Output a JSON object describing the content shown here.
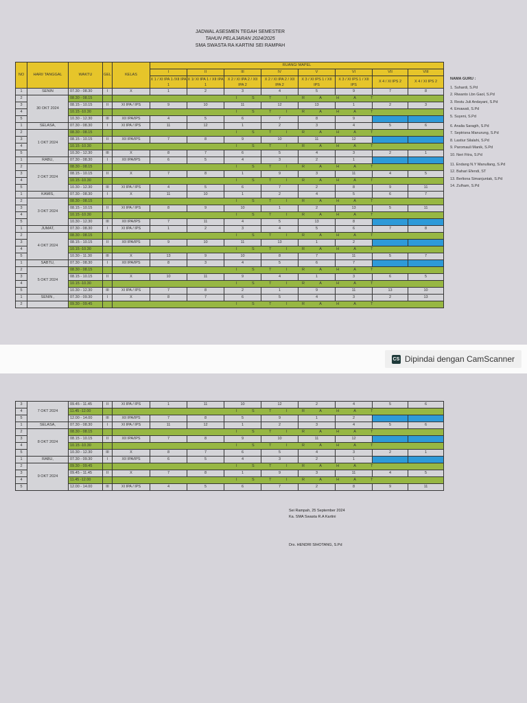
{
  "document": {
    "title_line1": "JADWAL ASESMEN TEGAH SEMESTER",
    "title_line2": "TAHUN PELAJARAN 2024/2025",
    "title_line3": "SMA SWASTA RA KARTINI SEI RAMPAH"
  },
  "table": {
    "headers": {
      "no": "NO",
      "hari": "HARI/ TANGGAL",
      "waktu": "WAKTU",
      "gel": "GEL",
      "kelas": "KELAS",
      "ruang": "RUANG/ MAPEL",
      "rooms": [
        {
          "num": "I",
          "cls": "X 1 / XI IPA 1 /XII IPA 1"
        },
        {
          "num": "II",
          "cls": "X 1/ XI IPA 1 / XII IPA 1"
        },
        {
          "num": "III",
          "cls": "X 2 / XI IPA 2 / XII IPA 2"
        },
        {
          "num": "IV",
          "cls": "X 2 / XI IPA 2 / XII IPA 2"
        },
        {
          "num": "V",
          "cls": "X 3 / XI IPS 1 / XII IPS"
        },
        {
          "num": "VI",
          "cls": "X 3 / XI IPS 1 / XII IPS"
        },
        {
          "num": "VII",
          "cls": "X 4 / XI IPS 2"
        },
        {
          "num": "VIII",
          "cls": "X 4 / XI IPS 2"
        }
      ]
    },
    "break_label": "I S T I R A H A T",
    "days_page1": [
      {
        "day": "SENIN",
        "date": "30 OKT 2024",
        "rows": [
          {
            "no": "1",
            "waktu": "07.30 - 08.30",
            "gel": "I",
            "kelas": "X",
            "vals": [
              "1",
              "2",
              "3",
              "4",
              "5",
              "9",
              "7",
              "8"
            ]
          },
          {
            "no": "2",
            "waktu": "08.30 - 08.15",
            "break": true
          },
          {
            "no": "3",
            "waktu": "08.15 - 10.15",
            "gel": "II",
            "kelas": "XI IPA / IPS",
            "vals": [
              "9",
              "10",
              "11",
              "12",
              "13",
              "1",
              "2",
              "3"
            ]
          },
          {
            "no": "4",
            "waktu": "10.15 -10.30",
            "break": true
          },
          {
            "no": "5",
            "waktu": "10.30 - 12.30",
            "gel": "III",
            "kelas": "XII IPA/IPS",
            "vals": [
              "4",
              "5",
              "6",
              "7",
              "8",
              "9",
              "",
              ""
            ]
          }
        ]
      },
      {
        "day": "SELASA,",
        "date": "1 OKT 2024",
        "rows": [
          {
            "no": "1",
            "waktu": "07.30 - 08.30",
            "gel": "I",
            "kelas": "XI IPA / IPS",
            "vals": [
              "11",
              "12",
              "1",
              "2",
              "3",
              "4",
              "5",
              "6"
            ]
          },
          {
            "no": "2",
            "waktu": "08.30 - 08.15",
            "break": true
          },
          {
            "no": "3",
            "waktu": "08.15 - 10.15",
            "gel": "II",
            "kelas": "XII IPA/IPS",
            "vals": [
              "7",
              "8",
              "9",
              "10",
              "11",
              "12",
              "",
              ""
            ]
          },
          {
            "no": "4",
            "waktu": "10.15 -10.30",
            "break": true
          },
          {
            "no": "5",
            "waktu": "10.30 - 12.30",
            "gel": "III",
            "kelas": "X",
            "vals": [
              "8",
              "7",
              "6",
              "5",
              "4",
              "3",
              "2",
              "1"
            ]
          }
        ]
      },
      {
        "day": "RABU,",
        "date": "2 OKT 2024",
        "rows": [
          {
            "no": "1",
            "waktu": "07.30 - 08.30",
            "gel": "I",
            "kelas": "XII IPA/IPS",
            "vals": [
              "6",
              "5",
              "4",
              "3",
              "2",
              "1",
              "",
              ""
            ]
          },
          {
            "no": "2",
            "waktu": "08.30 - 08.15",
            "break": true
          },
          {
            "no": "3",
            "waktu": "08.15 - 10.15",
            "gel": "II",
            "kelas": "X",
            "vals": [
              "7",
              "8",
              "1",
              "9",
              "3",
              "11",
              "4",
              "5"
            ]
          },
          {
            "no": "4",
            "waktu": "10.15 -10.30",
            "break": true
          },
          {
            "no": "5",
            "waktu": "10.30 - 12.30",
            "gel": "III",
            "kelas": "XI IPA / IPS",
            "vals": [
              "4",
              "5",
              "6",
              "7",
              "2",
              "8",
              "9",
              "11"
            ]
          }
        ]
      },
      {
        "day": "KAMIS,",
        "date": "3 OKT 2024",
        "rows": [
          {
            "no": "1",
            "waktu": "07.30 - 08.30",
            "gel": "I",
            "kelas": "X",
            "vals": [
              "11",
              "10",
              "1",
              "2",
              "4",
              "5",
              "6",
              "7"
            ]
          },
          {
            "no": "2",
            "waktu": "08.30 - 08.15",
            "break": true
          },
          {
            "no": "3",
            "waktu": "08.15 - 10.15",
            "gel": "II",
            "kelas": "XI IPA / IPS",
            "vals": [
              "8",
              "9",
              "10",
              "1",
              "2",
              "13",
              "5",
              "11"
            ]
          },
          {
            "no": "4",
            "waktu": "10.15 -10.30",
            "break": true
          },
          {
            "no": "5",
            "waktu": "10.30 - 12.30",
            "gel": "III",
            "kelas": "XII IPA/IPS",
            "vals": [
              "7",
              "11",
              "4",
              "5",
              "13",
              "8",
              "",
              ""
            ]
          }
        ]
      },
      {
        "day": "JUMAT,",
        "date": "4 OKT 2024",
        "rows": [
          {
            "no": "1",
            "waktu": "07.30 - 08.30",
            "gel": "I",
            "kelas": "XI IPA / IPS",
            "vals": [
              "1",
              "2",
              "3",
              "4",
              "5",
              "6",
              "7",
              "8"
            ]
          },
          {
            "no": "2",
            "waktu": "08.30 - 08.15",
            "break": true
          },
          {
            "no": "3",
            "waktu": "08.15 - 10.15",
            "gel": "II",
            "kelas": "XII IPA/IPS",
            "vals": [
              "9",
              "10",
              "11",
              "13",
              "1",
              "2",
              "",
              ""
            ]
          },
          {
            "no": "4",
            "waktu": "10.15 -10.30",
            "break": true
          },
          {
            "no": "5",
            "waktu": "10.30 - 11.30",
            "gel": "III",
            "kelas": "X",
            "vals": [
              "13",
              "9",
              "10",
              "8",
              "7",
              "11",
              "5",
              "7"
            ]
          }
        ]
      },
      {
        "day": "SABTU,",
        "date": "5 OKT 2024",
        "rows": [
          {
            "no": "1",
            "waktu": "07.30 - 08.30",
            "gel": "I",
            "kelas": "XII IPA/IPS",
            "vals": [
              "8",
              "3",
              "4",
              "5",
              "6",
              "7",
              "",
              ""
            ]
          },
          {
            "no": "2",
            "waktu": "08.30 - 08.15",
            "break": true
          },
          {
            "no": "3",
            "waktu": "08.15 - 10.15",
            "gel": "II",
            "kelas": "X",
            "vals": [
              "10",
              "11",
              "9",
              "4",
              "1",
              "3",
              "6",
              "5"
            ]
          },
          {
            "no": "4",
            "waktu": "10.15 -10.30",
            "break": true
          },
          {
            "no": "5",
            "waktu": "10.30 - 12.30",
            "gel": "III",
            "kelas": "XI IPA / IPS",
            "vals": [
              "7",
              "8",
              "2",
              "1",
              "9",
              "11",
              "13",
              "10"
            ]
          }
        ]
      },
      {
        "day": "SENIN ,",
        "date": "",
        "rows": [
          {
            "no": "1",
            "waktu": "07.30 - 09.30",
            "gel": "I",
            "kelas": "X",
            "vals": [
              "8",
              "7",
              "6",
              "5",
              "4",
              "3",
              "2",
              "13"
            ]
          },
          {
            "no": "2",
            "waktu": "09.30 - 09.45",
            "break": true
          }
        ]
      }
    ],
    "days_page2": [
      {
        "day": "",
        "date": "7 OKT 2024",
        "rows": [
          {
            "no": "3",
            "waktu": "09.45 - 11.45",
            "gel": "II",
            "kelas": "XI IPA / IPS",
            "vals": [
              "1",
              "11",
              "10",
              "12",
              "2",
              "4",
              "5",
              "6"
            ]
          },
          {
            "no": "4",
            "waktu": "11.45 -12.00",
            "break": true
          },
          {
            "no": "5",
            "waktu": "12.00 - 14.00",
            "gel": "III",
            "kelas": "XII IPA/IPS",
            "vals": [
              "7",
              "8",
              "5",
              "9",
              "1",
              "2",
              "",
              ""
            ]
          }
        ]
      },
      {
        "day": "SELASA,",
        "date": "8 OKT 2024",
        "rows": [
          {
            "no": "1",
            "waktu": "07.30 - 08.30",
            "gel": "I",
            "kelas": "XI IPA / IPS",
            "vals": [
              "11",
              "12",
              "1",
              "2",
              "3",
              "4",
              "5",
              "6"
            ]
          },
          {
            "no": "2",
            "waktu": "08.30 - 08.15",
            "break": true
          },
          {
            "no": "3",
            "waktu": "08.15 - 10.15",
            "gel": "II",
            "kelas": "XII IPA/IPS",
            "vals": [
              "7",
              "8",
              "9",
              "10",
              "11",
              "12",
              "",
              ""
            ]
          },
          {
            "no": "4",
            "waktu": "10.15 -10.30",
            "break": true
          },
          {
            "no": "5",
            "waktu": "10.30 - 12.30",
            "gel": "III",
            "kelas": "X",
            "vals": [
              "8",
              "7",
              "6",
              "5",
              "4",
              "3",
              "2",
              "1"
            ]
          }
        ]
      },
      {
        "day": "RABU,",
        "date": "9 OKT 2024",
        "rows": [
          {
            "no": "1",
            "waktu": "07.30 - 09.30",
            "gel": "I",
            "kelas": "XII IPA/IPS",
            "vals": [
              "6",
              "5",
              "4",
              "3",
              "2",
              "1",
              "",
              ""
            ]
          },
          {
            "no": "2",
            "waktu": "09.30 - 09.45",
            "break": true
          },
          {
            "no": "3",
            "waktu": "09.45 - 11.45",
            "gel": "II",
            "kelas": "X",
            "vals": [
              "7",
              "8",
              "1",
              "9",
              "3",
              "11",
              "4",
              "5"
            ]
          },
          {
            "no": "4",
            "waktu": "11.45 -12.00",
            "break": true
          },
          {
            "no": "5",
            "waktu": "12.00 - 14.00",
            "gel": "III",
            "kelas": "XI IPA / IPS",
            "vals": [
              "4",
              "5",
              "6",
              "7",
              "2",
              "8",
              "9",
              "11"
            ]
          }
        ]
      }
    ]
  },
  "teachers": {
    "heading": "NAMA GURU :",
    "items": [
      "1. Suhardi, S.Pd",
      "2. Riwanto Lbn Gaol, S.Pd",
      "3. Restu Juli Andayani, S.Pd",
      "4. Emawati, S.Pd",
      "5. Suyeni, S.Pd",
      "6. Analia Saragih, S.Pd",
      "7. Septrisna Manurung, S.Pd",
      "8. Lastiur Silalahi, S.Pd",
      "9. Paromauli Manik, S.Pd",
      "10. Neri Fitra,  S.Pd",
      "11. Endang N.Y Manullang, S.Pd",
      "12. Bahari Efendi, ST",
      "13. Berliona Simanjuntak, S.Pd",
      "14. Zulham, S.Pd"
    ]
  },
  "signature": {
    "place_date": "Sei Rampah,  25 September 2024",
    "position": "Ka. SMA Swasta R.A Kartini",
    "name": "Drs. HENDRI SIHOTANG, S.Pd"
  },
  "scanner": {
    "logo": "CS",
    "label": "Dipindai dengan CamScanner"
  },
  "colors": {
    "header_yellow": "#e6c52a",
    "break_green": "#97b743",
    "empty_blue": "#2e9ad8",
    "cell_gray": "#d4d4d8"
  }
}
